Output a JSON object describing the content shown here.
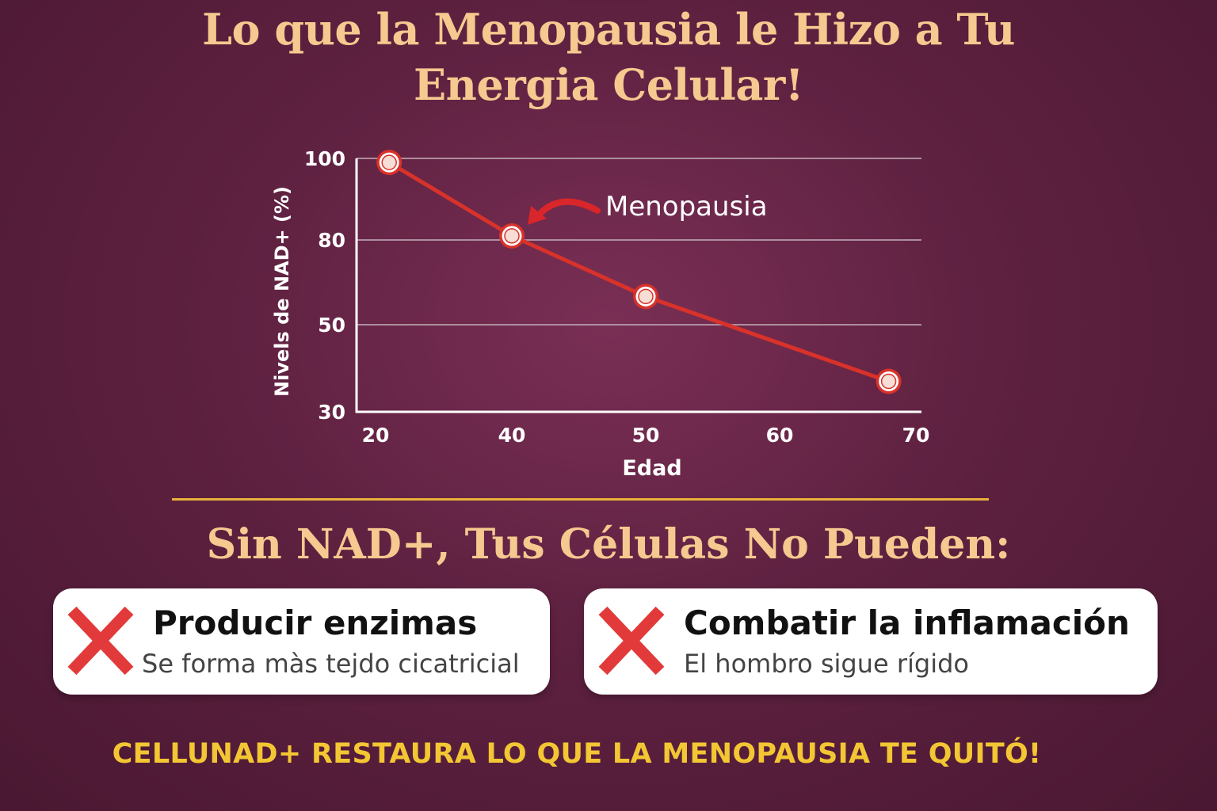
{
  "title": {
    "line1": "Lo que la Menopausia le Hizo a Tu",
    "line2": "Energia Celular!"
  },
  "colors": {
    "background": "#5e2140",
    "title": "#f5c98f",
    "line": "#d8322a",
    "grid": "#b9a0ad",
    "axis": "#ffffff",
    "divider": "#e8b13a",
    "cta": "#f3c633",
    "x_mark": "#e23a3a"
  },
  "chart_data": {
    "type": "line",
    "xlabel": "Edad",
    "ylabel": "Nivels de NAD+ (%)",
    "x_ticks": [
      20,
      40,
      50,
      60,
      70
    ],
    "y_ticks": [
      100,
      80,
      50,
      30
    ],
    "grid": true,
    "series": [
      {
        "points": [
          {
            "x": 22,
            "y": 99
          },
          {
            "x": 40,
            "y": 81
          },
          {
            "x": 50,
            "y": 60
          },
          {
            "x": 68,
            "y": 37
          }
        ]
      }
    ],
    "annotation": {
      "text": "Menopausia",
      "x": 40,
      "y": 81,
      "icon": "curved-arrow-icon"
    }
  },
  "section": {
    "subtitle": "Sin NAD+, Tus Células No Pueden:"
  },
  "cards": [
    {
      "icon": "x-mark-icon",
      "heading": "Producir enzimas",
      "detail": "Se forma màs tejdo cicatricial"
    },
    {
      "icon": "x-mark-icon",
      "heading": "Combatir la inflamación",
      "detail": "El hombro sigue rígido"
    }
  ],
  "cta": "CELLUNAD+ RESTAURA LO QUE LA MENOPAUSIA TE QUITÓ!"
}
